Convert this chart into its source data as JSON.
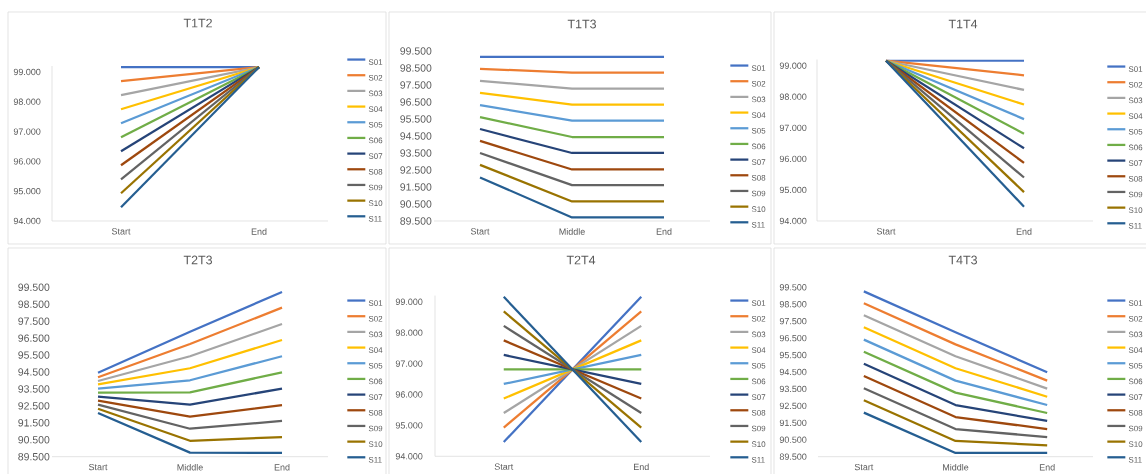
{
  "chart_data": [
    {
      "type": "line",
      "title": "T1T2",
      "categories": [
        "Start",
        "End"
      ],
      "ylim": [
        94,
        99.2
      ],
      "yticks": [
        {
          "value": 94,
          "label": "94.000"
        },
        {
          "value": 95,
          "label": "95.000"
        },
        {
          "value": 96,
          "label": "96.000"
        },
        {
          "value": 97,
          "label": "97.000"
        },
        {
          "value": 98,
          "label": "98.000"
        },
        {
          "value": 99,
          "label": "99.000"
        }
      ],
      "legend": "right",
      "series": [
        {
          "name": "S01",
          "color": "#4472c4",
          "values": [
            99.16,
            99.16
          ]
        },
        {
          "name": "S02",
          "color": "#ed7d31",
          "values": [
            98.69,
            99.16
          ]
        },
        {
          "name": "S03",
          "color": "#a5a5a5",
          "values": [
            98.22,
            99.16
          ]
        },
        {
          "name": "S04",
          "color": "#ffc000",
          "values": [
            97.75,
            99.16
          ]
        },
        {
          "name": "S05",
          "color": "#5b9bd5",
          "values": [
            97.28,
            99.16
          ]
        },
        {
          "name": "S06",
          "color": "#70ad47",
          "values": [
            96.81,
            99.16
          ]
        },
        {
          "name": "S07",
          "color": "#264478",
          "values": [
            96.34,
            99.16
          ]
        },
        {
          "name": "S08",
          "color": "#9e480e",
          "values": [
            95.87,
            99.16
          ]
        },
        {
          "name": "S09",
          "color": "#636363",
          "values": [
            95.4,
            99.16
          ]
        },
        {
          "name": "S10",
          "color": "#997300",
          "values": [
            94.93,
            99.16
          ]
        },
        {
          "name": "S11",
          "color": "#255e91",
          "values": [
            94.46,
            99.16
          ]
        }
      ]
    },
    {
      "type": "line",
      "title": "T1T3",
      "categories": [
        "Start",
        "Middle",
        "End"
      ],
      "ylim": [
        89.5,
        99.5
      ],
      "yticks": [
        {
          "value": 89.5,
          "label": "89.500"
        },
        {
          "value": 90.5,
          "label": "90.500"
        },
        {
          "value": 91.5,
          "label": "91.500"
        },
        {
          "value": 92.5,
          "label": "92.500"
        },
        {
          "value": 93.5,
          "label": "93.500"
        },
        {
          "value": 94.5,
          "label": "94.500"
        },
        {
          "value": 95.5,
          "label": "95.500"
        },
        {
          "value": 96.5,
          "label": "96.500"
        },
        {
          "value": 97.5,
          "label": "97.500"
        },
        {
          "value": 98.5,
          "label": "98.500"
        },
        {
          "value": 99.5,
          "label": "99.500"
        }
      ],
      "legend": "right",
      "series": [
        {
          "name": "S01",
          "color": "#4472c4",
          "values": [
            99.15,
            99.15,
            99.15
          ]
        },
        {
          "name": "S02",
          "color": "#ed7d31",
          "values": [
            98.45,
            98.23,
            98.23
          ]
        },
        {
          "name": "S03",
          "color": "#a5a5a5",
          "values": [
            97.74,
            97.29,
            97.29
          ]
        },
        {
          "name": "S04",
          "color": "#ffc000",
          "values": [
            97.04,
            96.34,
            96.34
          ]
        },
        {
          "name": "S05",
          "color": "#5b9bd5",
          "values": [
            96.32,
            95.4,
            95.4
          ]
        },
        {
          "name": "S06",
          "color": "#70ad47",
          "values": [
            95.61,
            94.44,
            94.44
          ]
        },
        {
          "name": "S07",
          "color": "#264478",
          "values": [
            94.91,
            93.5,
            93.5
          ]
        },
        {
          "name": "S08",
          "color": "#9e480e",
          "values": [
            94.21,
            92.53,
            92.53
          ]
        },
        {
          "name": "S09",
          "color": "#636363",
          "values": [
            93.5,
            91.61,
            91.61
          ]
        },
        {
          "name": "S10",
          "color": "#997300",
          "values": [
            92.8,
            90.65,
            90.65
          ]
        },
        {
          "name": "S11",
          "color": "#255e91",
          "values": [
            92.06,
            89.71,
            89.71
          ]
        }
      ]
    },
    {
      "type": "line",
      "title": "T1T4",
      "categories": [
        "Start",
        "End"
      ],
      "ylim": [
        94,
        99.2
      ],
      "yticks": [
        {
          "value": 94,
          "label": "94.000"
        },
        {
          "value": 95,
          "label": "95.000"
        },
        {
          "value": 96,
          "label": "96.000"
        },
        {
          "value": 97,
          "label": "97.000"
        },
        {
          "value": 98,
          "label": "98.000"
        },
        {
          "value": 99,
          "label": "99.000"
        }
      ],
      "legend": "right",
      "series": [
        {
          "name": "S01",
          "color": "#4472c4",
          "values": [
            99.16,
            99.16
          ]
        },
        {
          "name": "S02",
          "color": "#ed7d31",
          "values": [
            99.16,
            98.69
          ]
        },
        {
          "name": "S03",
          "color": "#a5a5a5",
          "values": [
            99.16,
            98.22
          ]
        },
        {
          "name": "S04",
          "color": "#ffc000",
          "values": [
            99.16,
            97.75
          ]
        },
        {
          "name": "S05",
          "color": "#5b9bd5",
          "values": [
            99.16,
            97.28
          ]
        },
        {
          "name": "S06",
          "color": "#70ad47",
          "values": [
            99.16,
            96.81
          ]
        },
        {
          "name": "S07",
          "color": "#264478",
          "values": [
            99.16,
            96.34
          ]
        },
        {
          "name": "S08",
          "color": "#9e480e",
          "values": [
            99.16,
            95.87
          ]
        },
        {
          "name": "S09",
          "color": "#636363",
          "values": [
            99.16,
            95.4
          ]
        },
        {
          "name": "S10",
          "color": "#997300",
          "values": [
            99.16,
            94.93
          ]
        },
        {
          "name": "S11",
          "color": "#255e91",
          "values": [
            99.16,
            94.46
          ]
        }
      ]
    },
    {
      "type": "line",
      "title": "T2T3",
      "categories": [
        "Start",
        "Middle",
        "End"
      ],
      "ylim": [
        89.5,
        99.5
      ],
      "yticks": [
        {
          "value": 89.5,
          "label": "89.500"
        },
        {
          "value": 90.5,
          "label": "90.500"
        },
        {
          "value": 91.5,
          "label": "91.500"
        },
        {
          "value": 92.5,
          "label": "92.500"
        },
        {
          "value": 93.5,
          "label": "93.500"
        },
        {
          "value": 94.5,
          "label": "94.500"
        },
        {
          "value": 95.5,
          "label": "95.500"
        },
        {
          "value": 96.5,
          "label": "96.500"
        },
        {
          "value": 97.5,
          "label": "97.500"
        },
        {
          "value": 98.5,
          "label": "98.500"
        },
        {
          "value": 99.5,
          "label": "99.500"
        }
      ],
      "legend": "right",
      "series": [
        {
          "name": "S01",
          "color": "#4472c4",
          "values": [
            94.46,
            96.88,
            99.22
          ]
        },
        {
          "name": "S02",
          "color": "#ed7d31",
          "values": [
            94.19,
            96.15,
            98.3
          ]
        },
        {
          "name": "S03",
          "color": "#a5a5a5",
          "values": [
            93.97,
            95.43,
            97.33
          ]
        },
        {
          "name": "S04",
          "color": "#ffc000",
          "values": [
            93.77,
            94.72,
            96.39
          ]
        },
        {
          "name": "S05",
          "color": "#5b9bd5",
          "values": [
            93.52,
            94.01,
            95.43
          ]
        },
        {
          "name": "S06",
          "color": "#70ad47",
          "values": [
            93.28,
            93.3,
            94.48
          ]
        },
        {
          "name": "S07",
          "color": "#264478",
          "values": [
            93.04,
            92.57,
            93.52
          ]
        },
        {
          "name": "S08",
          "color": "#9e480e",
          "values": [
            92.81,
            91.86,
            92.55
          ]
        },
        {
          "name": "S09",
          "color": "#636363",
          "values": [
            92.57,
            91.15,
            91.61
          ]
        },
        {
          "name": "S10",
          "color": "#997300",
          "values": [
            92.33,
            90.44,
            90.66
          ]
        },
        {
          "name": "S11",
          "color": "#255e91",
          "values": [
            92.08,
            89.74,
            89.72
          ]
        }
      ]
    },
    {
      "type": "line",
      "title": "T2T4",
      "categories": [
        "Start",
        "End"
      ],
      "ylim": [
        94,
        99.2
      ],
      "yticks": [
        {
          "value": 94,
          "label": "94.000"
        },
        {
          "value": 95,
          "label": "95.000"
        },
        {
          "value": 96,
          "label": "96.000"
        },
        {
          "value": 97,
          "label": "97.000"
        },
        {
          "value": 98,
          "label": "98.000"
        },
        {
          "value": 99,
          "label": "99.000"
        }
      ],
      "legend": "right",
      "series": [
        {
          "name": "S01",
          "color": "#4472c4",
          "values": [
            94.46,
            99.16
          ]
        },
        {
          "name": "S02",
          "color": "#ed7d31",
          "values": [
            94.93,
            98.69
          ]
        },
        {
          "name": "S03",
          "color": "#a5a5a5",
          "values": [
            95.4,
            98.22
          ]
        },
        {
          "name": "S04",
          "color": "#ffc000",
          "values": [
            95.87,
            97.75
          ]
        },
        {
          "name": "S05",
          "color": "#5b9bd5",
          "values": [
            96.34,
            97.28
          ]
        },
        {
          "name": "S06",
          "color": "#70ad47",
          "values": [
            96.81,
            96.81
          ]
        },
        {
          "name": "S07",
          "color": "#264478",
          "values": [
            97.28,
            96.34
          ]
        },
        {
          "name": "S08",
          "color": "#9e480e",
          "values": [
            97.75,
            95.87
          ]
        },
        {
          "name": "S09",
          "color": "#636363",
          "values": [
            98.22,
            95.4
          ]
        },
        {
          "name": "S10",
          "color": "#997300",
          "values": [
            98.69,
            94.93
          ]
        },
        {
          "name": "S11",
          "color": "#255e91",
          "values": [
            99.16,
            94.46
          ]
        }
      ]
    },
    {
      "type": "line",
      "title": "T4T3",
      "categories": [
        "Start",
        "Middle",
        "End"
      ],
      "ylim": [
        89.5,
        99.5
      ],
      "yticks": [
        {
          "value": 89.5,
          "label": "89.500"
        },
        {
          "value": 90.5,
          "label": "90.500"
        },
        {
          "value": 91.5,
          "label": "91.500"
        },
        {
          "value": 92.5,
          "label": "92.500"
        },
        {
          "value": 93.5,
          "label": "93.500"
        },
        {
          "value": 94.5,
          "label": "94.500"
        },
        {
          "value": 95.5,
          "label": "95.500"
        },
        {
          "value": 96.5,
          "label": "96.500"
        },
        {
          "value": 97.5,
          "label": "97.500"
        },
        {
          "value": 98.5,
          "label": "98.500"
        },
        {
          "value": 99.5,
          "label": "99.500"
        }
      ],
      "legend": "right",
      "series": [
        {
          "name": "S01",
          "color": "#4472c4",
          "values": [
            99.26,
            96.84,
            94.48
          ]
        },
        {
          "name": "S02",
          "color": "#ed7d31",
          "values": [
            98.56,
            96.13,
            93.99
          ]
        },
        {
          "name": "S03",
          "color": "#a5a5a5",
          "values": [
            97.85,
            95.43,
            93.52
          ]
        },
        {
          "name": "S04",
          "color": "#ffc000",
          "values": [
            97.14,
            94.72,
            93.04
          ]
        },
        {
          "name": "S05",
          "color": "#5b9bd5",
          "values": [
            96.41,
            93.99,
            92.55
          ]
        },
        {
          "name": "S06",
          "color": "#70ad47",
          "values": [
            95.7,
            93.28,
            92.08
          ]
        },
        {
          "name": "S07",
          "color": "#264478",
          "values": [
            94.99,
            92.55,
            91.61
          ]
        },
        {
          "name": "S08",
          "color": "#9e480e",
          "values": [
            94.26,
            91.84,
            91.13
          ]
        },
        {
          "name": "S09",
          "color": "#636363",
          "values": [
            93.54,
            91.13,
            90.66
          ]
        },
        {
          "name": "S10",
          "color": "#997300",
          "values": [
            92.83,
            90.43,
            90.17
          ]
        },
        {
          "name": "S11",
          "color": "#255e91",
          "values": [
            92.1,
            89.72,
            89.72
          ]
        }
      ]
    }
  ]
}
